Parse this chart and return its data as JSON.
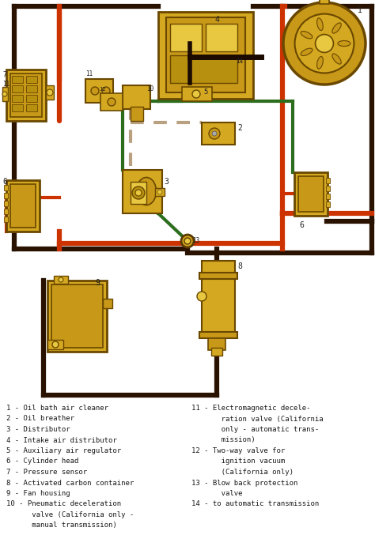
{
  "bg_color": "#ffffff",
  "line_colors": {
    "dark_brown": "#2a1200",
    "orange_red": "#cc3300",
    "green": "#2d6e1e",
    "dashed_tan": "#b8a080"
  },
  "comp_yellow": "#d4a820",
  "comp_yellow2": "#c89818",
  "comp_yellow3": "#e8c840",
  "legend_left": [
    "1 - Oil bath air cleaner",
    "2 - Oil breather",
    "3 - Distributor",
    "4 - Intake air distributor",
    "5 - Auxiliary air regulator",
    "6 - Cylinder head",
    "7 - Pressure sensor",
    "8 - Activated carbon container",
    "9 - Fan housing",
    "10 - Pneumatic deceleration",
    "      valve (California only -",
    "      manual transmission)"
  ],
  "legend_right": [
    "11 - Electromagnetic decele-",
    "       ration valve (California",
    "       only - automatic trans-",
    "       mission)",
    "12 - Two-way valve for",
    "       ignition vacuum",
    "       (California only)",
    "13 - Blow back protection",
    "       valve",
    "14 - to automatic transmission"
  ],
  "lw_thick": 4.5,
  "lw_med": 3.0,
  "lw_thin": 2.0
}
